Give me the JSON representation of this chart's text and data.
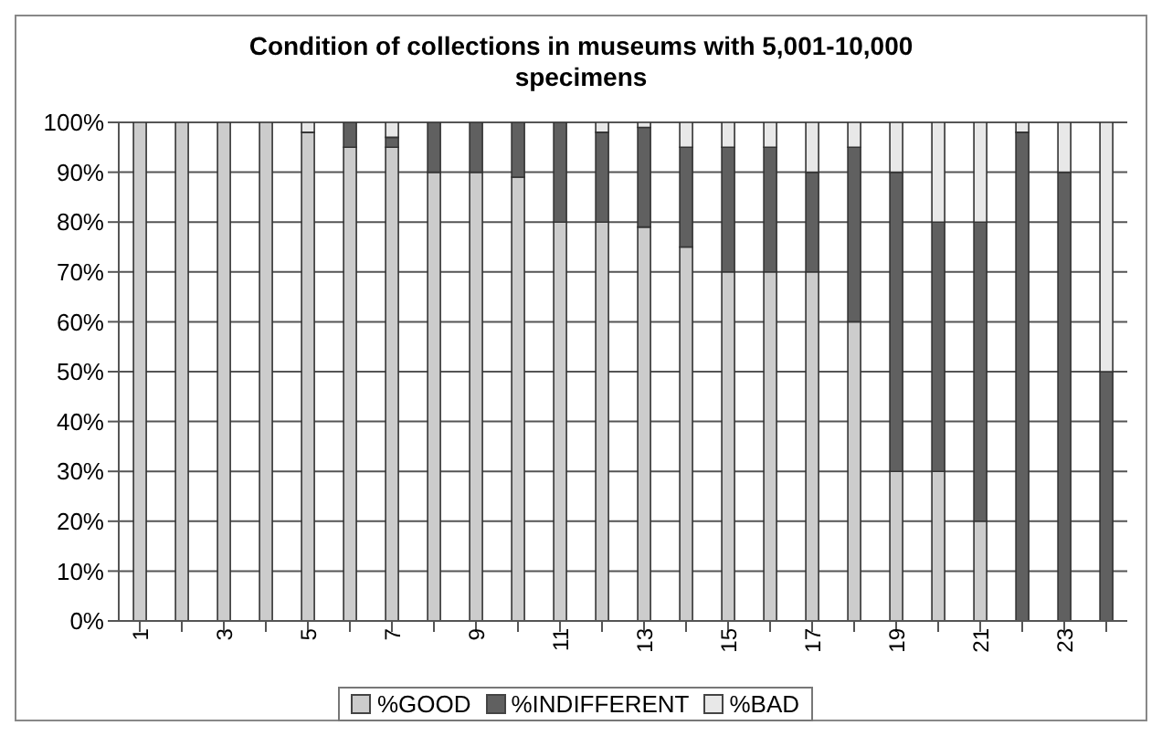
{
  "chart_data": {
    "type": "bar",
    "title": "Condition of collections in museums with 5,001-10,000 specimens",
    "categories": [
      "1",
      null,
      "3",
      null,
      "5",
      null,
      "7",
      null,
      "9",
      null,
      "11",
      null,
      "13",
      null,
      "15",
      null,
      "17",
      null,
      "19",
      null,
      "21",
      null,
      "23",
      null
    ],
    "stacked": true,
    "series": [
      {
        "name": "%GOOD",
        "color": "#cccccc",
        "values": [
          100,
          100,
          100,
          100,
          98,
          95,
          95,
          90,
          90,
          89,
          80,
          80,
          79,
          75,
          70,
          70,
          70,
          60,
          30,
          30,
          20,
          0,
          0,
          0
        ]
      },
      {
        "name": "%INDIFFERENT",
        "color": "#606060",
        "values": [
          0,
          0,
          0,
          0,
          0,
          5,
          2,
          10,
          10,
          11,
          20,
          18,
          20,
          20,
          25,
          25,
          20,
          35,
          60,
          50,
          60,
          98,
          90,
          50
        ]
      },
      {
        "name": "%BAD",
        "color": "#e8e8e8",
        "values": [
          0,
          0,
          0,
          0,
          2,
          0,
          3,
          0,
          0,
          0,
          0,
          2,
          1,
          5,
          5,
          5,
          10,
          5,
          10,
          20,
          20,
          2,
          10,
          50
        ]
      }
    ],
    "ylim": [
      0,
      100
    ],
    "yticks": [
      {
        "value": 0,
        "label": "0%"
      },
      {
        "value": 10,
        "label": "10%"
      },
      {
        "value": 20,
        "label": "20%"
      },
      {
        "value": 30,
        "label": "30%"
      },
      {
        "value": 40,
        "label": "40%"
      },
      {
        "value": 50,
        "label": "50%"
      },
      {
        "value": 60,
        "label": "60%"
      },
      {
        "value": 70,
        "label": "70%"
      },
      {
        "value": 80,
        "label": "80%"
      },
      {
        "value": 90,
        "label": "90%"
      },
      {
        "value": 100,
        "label": "100%"
      }
    ],
    "grid": "y",
    "legend": "bottom"
  }
}
